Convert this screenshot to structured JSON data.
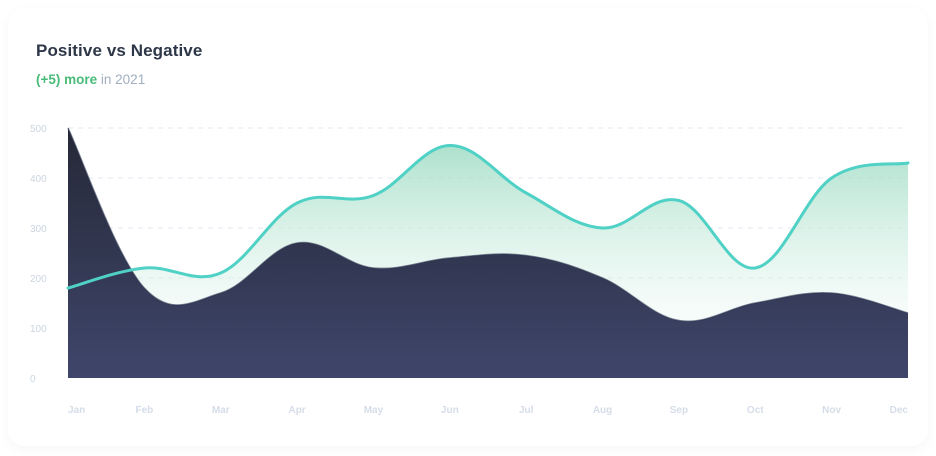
{
  "header": {
    "title": "Positive vs Negative",
    "subtitle_highlight": "(+5) more",
    "subtitle_rest": " in 2021"
  },
  "colors": {
    "line": "#4fd1c5",
    "light_area_top": "#9fdcc4",
    "light_area_bottom": "#ffffff",
    "dark_area_top": "#141827",
    "dark_area_bottom": "#313860",
    "grid": "#e2e8f0"
  },
  "chart_data": {
    "type": "area",
    "categories": [
      "Jan",
      "Feb",
      "Mar",
      "Apr",
      "May",
      "Jun",
      "Jul",
      "Aug",
      "Sep",
      "Oct",
      "Nov",
      "Dec"
    ],
    "series": [
      {
        "values": [
          500,
          180,
          170,
          270,
          220,
          240,
          245,
          200,
          115,
          150,
          170,
          130
        ]
      },
      {
        "values": [
          180,
          220,
          210,
          350,
          365,
          465,
          370,
          300,
          355,
          220,
          400,
          430
        ]
      }
    ],
    "ylim": [
      0,
      500
    ],
    "yticks": [
      0,
      100,
      200,
      300,
      400,
      500
    ],
    "grid": true,
    "legend": false
  }
}
